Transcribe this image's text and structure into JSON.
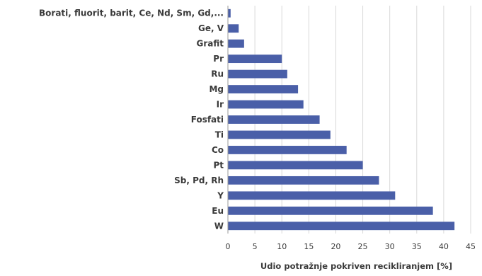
{
  "chart_data": {
    "type": "bar",
    "orientation": "horizontal",
    "categories": [
      "Borati, fluorit, barit, Ce, Nd, Sm, Gd,...",
      "Ge, V",
      "Grafit",
      "Pr",
      "Ru",
      "Mg",
      "Ir",
      "Fosfati",
      "Ti",
      "Co",
      "Pt",
      "Sb, Pd, Rh",
      "Y",
      "Eu",
      "W"
    ],
    "values": [
      0.5,
      2,
      3,
      10,
      11,
      13,
      14,
      17,
      19,
      22,
      25,
      28,
      31,
      38,
      42
    ],
    "xlabel": "Udio potražnje pokriven recikliranjem [%]",
    "ylabel": "",
    "xlim": [
      0,
      45
    ],
    "xticks": [
      "0",
      "5",
      "10",
      "15",
      "20",
      "25",
      "30",
      "35",
      "40",
      "45"
    ],
    "grid": "vertical",
    "bar_color": "#4a5fa8"
  }
}
